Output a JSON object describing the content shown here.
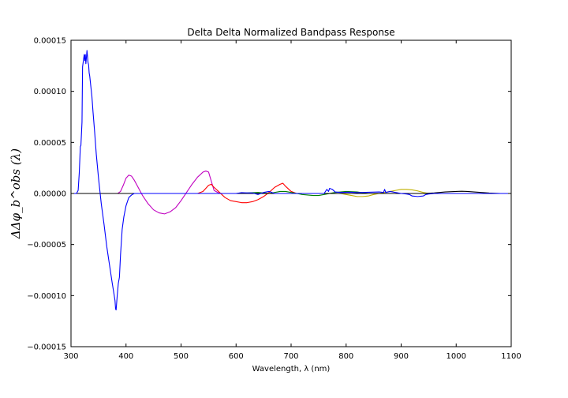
{
  "chart_data": {
    "type": "line",
    "title": "Delta Delta Normalized Bandpass Response",
    "xlabel": "Wavelength, λ (nm)",
    "ylabel": "ΔΔφ_b^obs (λ)",
    "xlim": [
      300,
      1100
    ],
    "ylim": [
      -0.00015,
      0.00015
    ],
    "xticks": [
      "300",
      "400",
      "500",
      "600",
      "700",
      "800",
      "900",
      "1000",
      "1100"
    ],
    "yticks": [
      "−0.00015",
      "−0.00010",
      "−0.00005",
      "0.00000",
      "0.00005",
      "0.00010",
      "0.00015"
    ],
    "grid": false,
    "series": [
      {
        "color": "#c000c0",
        "x": [
          300,
          385,
          390,
          395,
          400,
          405,
          410,
          415,
          420,
          430,
          440,
          450,
          460,
          470,
          480,
          490,
          500,
          510,
          520,
          530,
          540,
          545,
          550,
          555,
          560,
          570,
          600,
          1100
        ],
        "y": [
          0,
          0,
          2e-06,
          8e-06,
          1.5e-05,
          1.8e-05,
          1.7e-05,
          1.3e-05,
          8e-06,
          -2e-06,
          -1e-05,
          -1.6e-05,
          -1.9e-05,
          -2e-05,
          -1.8e-05,
          -1.4e-05,
          -7e-06,
          1e-06,
          9e-06,
          1.6e-05,
          2.1e-05,
          2.2e-05,
          2.1e-05,
          1.2e-05,
          3e-06,
          0,
          0,
          0
        ]
      },
      {
        "color": "#ff0000",
        "x": [
          300,
          530,
          540,
          550,
          555,
          560,
          570,
          580,
          590,
          600,
          610,
          620,
          630,
          640,
          650,
          660,
          670,
          680,
          685,
          690,
          700,
          710,
          1100
        ],
        "y": [
          0,
          0,
          2e-06,
          8e-06,
          9e-06,
          6e-06,
          1e-06,
          -4e-06,
          -7e-06,
          -8e-06,
          -9e-06,
          -9e-06,
          -8e-06,
          -6e-06,
          -3e-06,
          1e-06,
          6e-06,
          9e-06,
          1e-05,
          7e-06,
          2e-06,
          0,
          0
        ]
      },
      {
        "color": "#008000",
        "x": [
          300,
          600,
          620,
          640,
          660,
          680,
          690,
          700,
          720,
          740,
          750,
          760,
          780,
          800,
          820,
          840,
          1100
        ],
        "y": [
          0,
          0,
          5e-07,
          1e-06,
          0,
          2e-06,
          2e-06,
          1e-06,
          -1e-06,
          -2e-06,
          -2e-06,
          -1e-06,
          1e-06,
          2e-06,
          1.5e-06,
          0,
          0
        ]
      },
      {
        "color": "#c0b000",
        "x": [
          300,
          790,
          800,
          810,
          820,
          830,
          840,
          850,
          860,
          870,
          880,
          890,
          900,
          910,
          920,
          930,
          940,
          950,
          960,
          970,
          1100
        ],
        "y": [
          0,
          0,
          -1e-06,
          -2e-06,
          -3e-06,
          -3e-06,
          -2.5e-06,
          -1e-06,
          0,
          1e-06,
          2e-06,
          3e-06,
          4e-06,
          4e-06,
          3.5e-06,
          2.5e-06,
          1e-06,
          0,
          0,
          0,
          0
        ]
      },
      {
        "color": "#000000",
        "x": [
          300,
          940,
          960,
          980,
          1000,
          1010,
          1020,
          1040,
          1060,
          1080,
          1100
        ],
        "y": [
          0,
          0,
          5e-07,
          1.5e-06,
          2e-06,
          2.2e-06,
          2e-06,
          1.2e-06,
          4e-07,
          0,
          0
        ]
      },
      {
        "color": "#0000ff",
        "x": [
          300,
          310,
          313,
          315,
          317,
          318,
          320,
          321,
          322,
          323,
          324,
          325,
          326,
          327,
          328,
          329,
          330,
          331,
          332,
          333,
          334,
          336,
          338,
          340,
          343,
          346,
          350,
          355,
          360,
          365,
          370,
          375,
          378,
          380,
          381,
          382,
          384,
          386,
          388,
          390,
          393,
          396,
          400,
          405,
          410,
          415,
          420,
          430,
          600,
          610,
          620,
          630,
          640,
          645,
          650,
          660,
          665,
          670,
          700,
          760,
          765,
          768,
          770,
          775,
          780,
          790,
          800,
          810,
          820,
          830,
          860,
          868,
          870,
          872,
          880,
          900,
          910,
          915,
          920,
          930,
          940,
          945,
          950,
          960,
          1100
        ],
        "y": [
          0,
          0,
          3e-06,
          2e-05,
          4.6e-05,
          4.7e-05,
          7e-05,
          0.000124,
          0.000128,
          0.000132,
          0.000136,
          0.00013,
          0.000136,
          0.000127,
          0.000133,
          0.00014,
          0.000134,
          0.000128,
          0.000126,
          0.000118,
          0.000115,
          0.000105,
          9.5e-05,
          8e-05,
          6e-05,
          3.8e-05,
          1.5e-05,
          -1e-05,
          -3e-05,
          -5.2e-05,
          -7e-05,
          -8.8e-05,
          -9.8e-05,
          -0.000105,
          -0.000113,
          -0.000114,
          -0.0001,
          -8.8e-05,
          -8.2e-05,
          -6e-05,
          -3.5e-05,
          -2.3e-05,
          -1.2e-05,
          -4e-06,
          -1.5e-06,
          0,
          0,
          0,
          0,
          8e-07,
          5e-07,
          5e-07,
          -1e-06,
          0,
          1e-06,
          2e-06,
          1e-06,
          0,
          0,
          0,
          4e-06,
          2e-06,
          5e-06,
          4e-06,
          1.5e-06,
          1e-06,
          1.2e-06,
          1.2e-06,
          8e-07,
          1e-06,
          1.5e-06,
          1e-06,
          4e-06,
          1e-06,
          2e-06,
          0,
          -5e-07,
          -1e-06,
          -2.5e-06,
          -3e-06,
          -2.5e-06,
          -1e-06,
          -5e-07,
          0,
          0
        ]
      }
    ]
  }
}
